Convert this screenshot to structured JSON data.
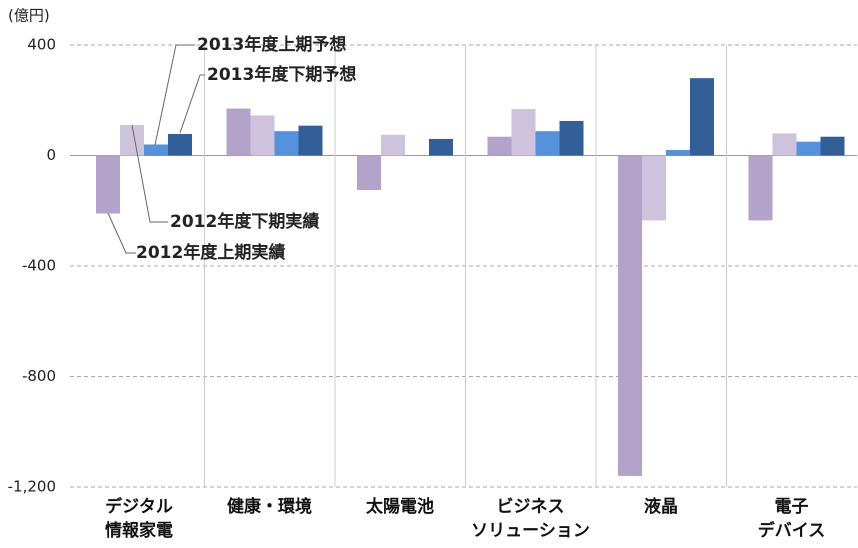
{
  "chart_data": {
    "type": "bar",
    "y_unit": "(億円)",
    "categories": [
      "デジタル\n情報家電",
      "健康・環境",
      "太陽電池",
      "ビジネス\nソリューション",
      "液晶",
      "電子\nデバイス"
    ],
    "series": [
      {
        "name": "2012年度上期実績",
        "color": "#b3a2c9",
        "values": [
          -210,
          170,
          -125,
          68,
          -1160,
          -235
        ]
      },
      {
        "name": "2012年度下期実績",
        "color": "#cdc3dd",
        "values": [
          110,
          145,
          75,
          168,
          -235,
          80
        ]
      },
      {
        "name": "2013年度上期予想",
        "color": "#5592db",
        "values": [
          40,
          88,
          null,
          88,
          20,
          50
        ]
      },
      {
        "name": "2013年度下期予想",
        "color": "#335f98",
        "values": [
          78,
          108,
          60,
          125,
          280,
          68
        ]
      }
    ],
    "ylim": [
      -1200,
      400
    ],
    "yticks": [
      {
        "value": -1200,
        "label": "-1,200"
      },
      -800,
      -400,
      0,
      400
    ],
    "grid": true
  }
}
